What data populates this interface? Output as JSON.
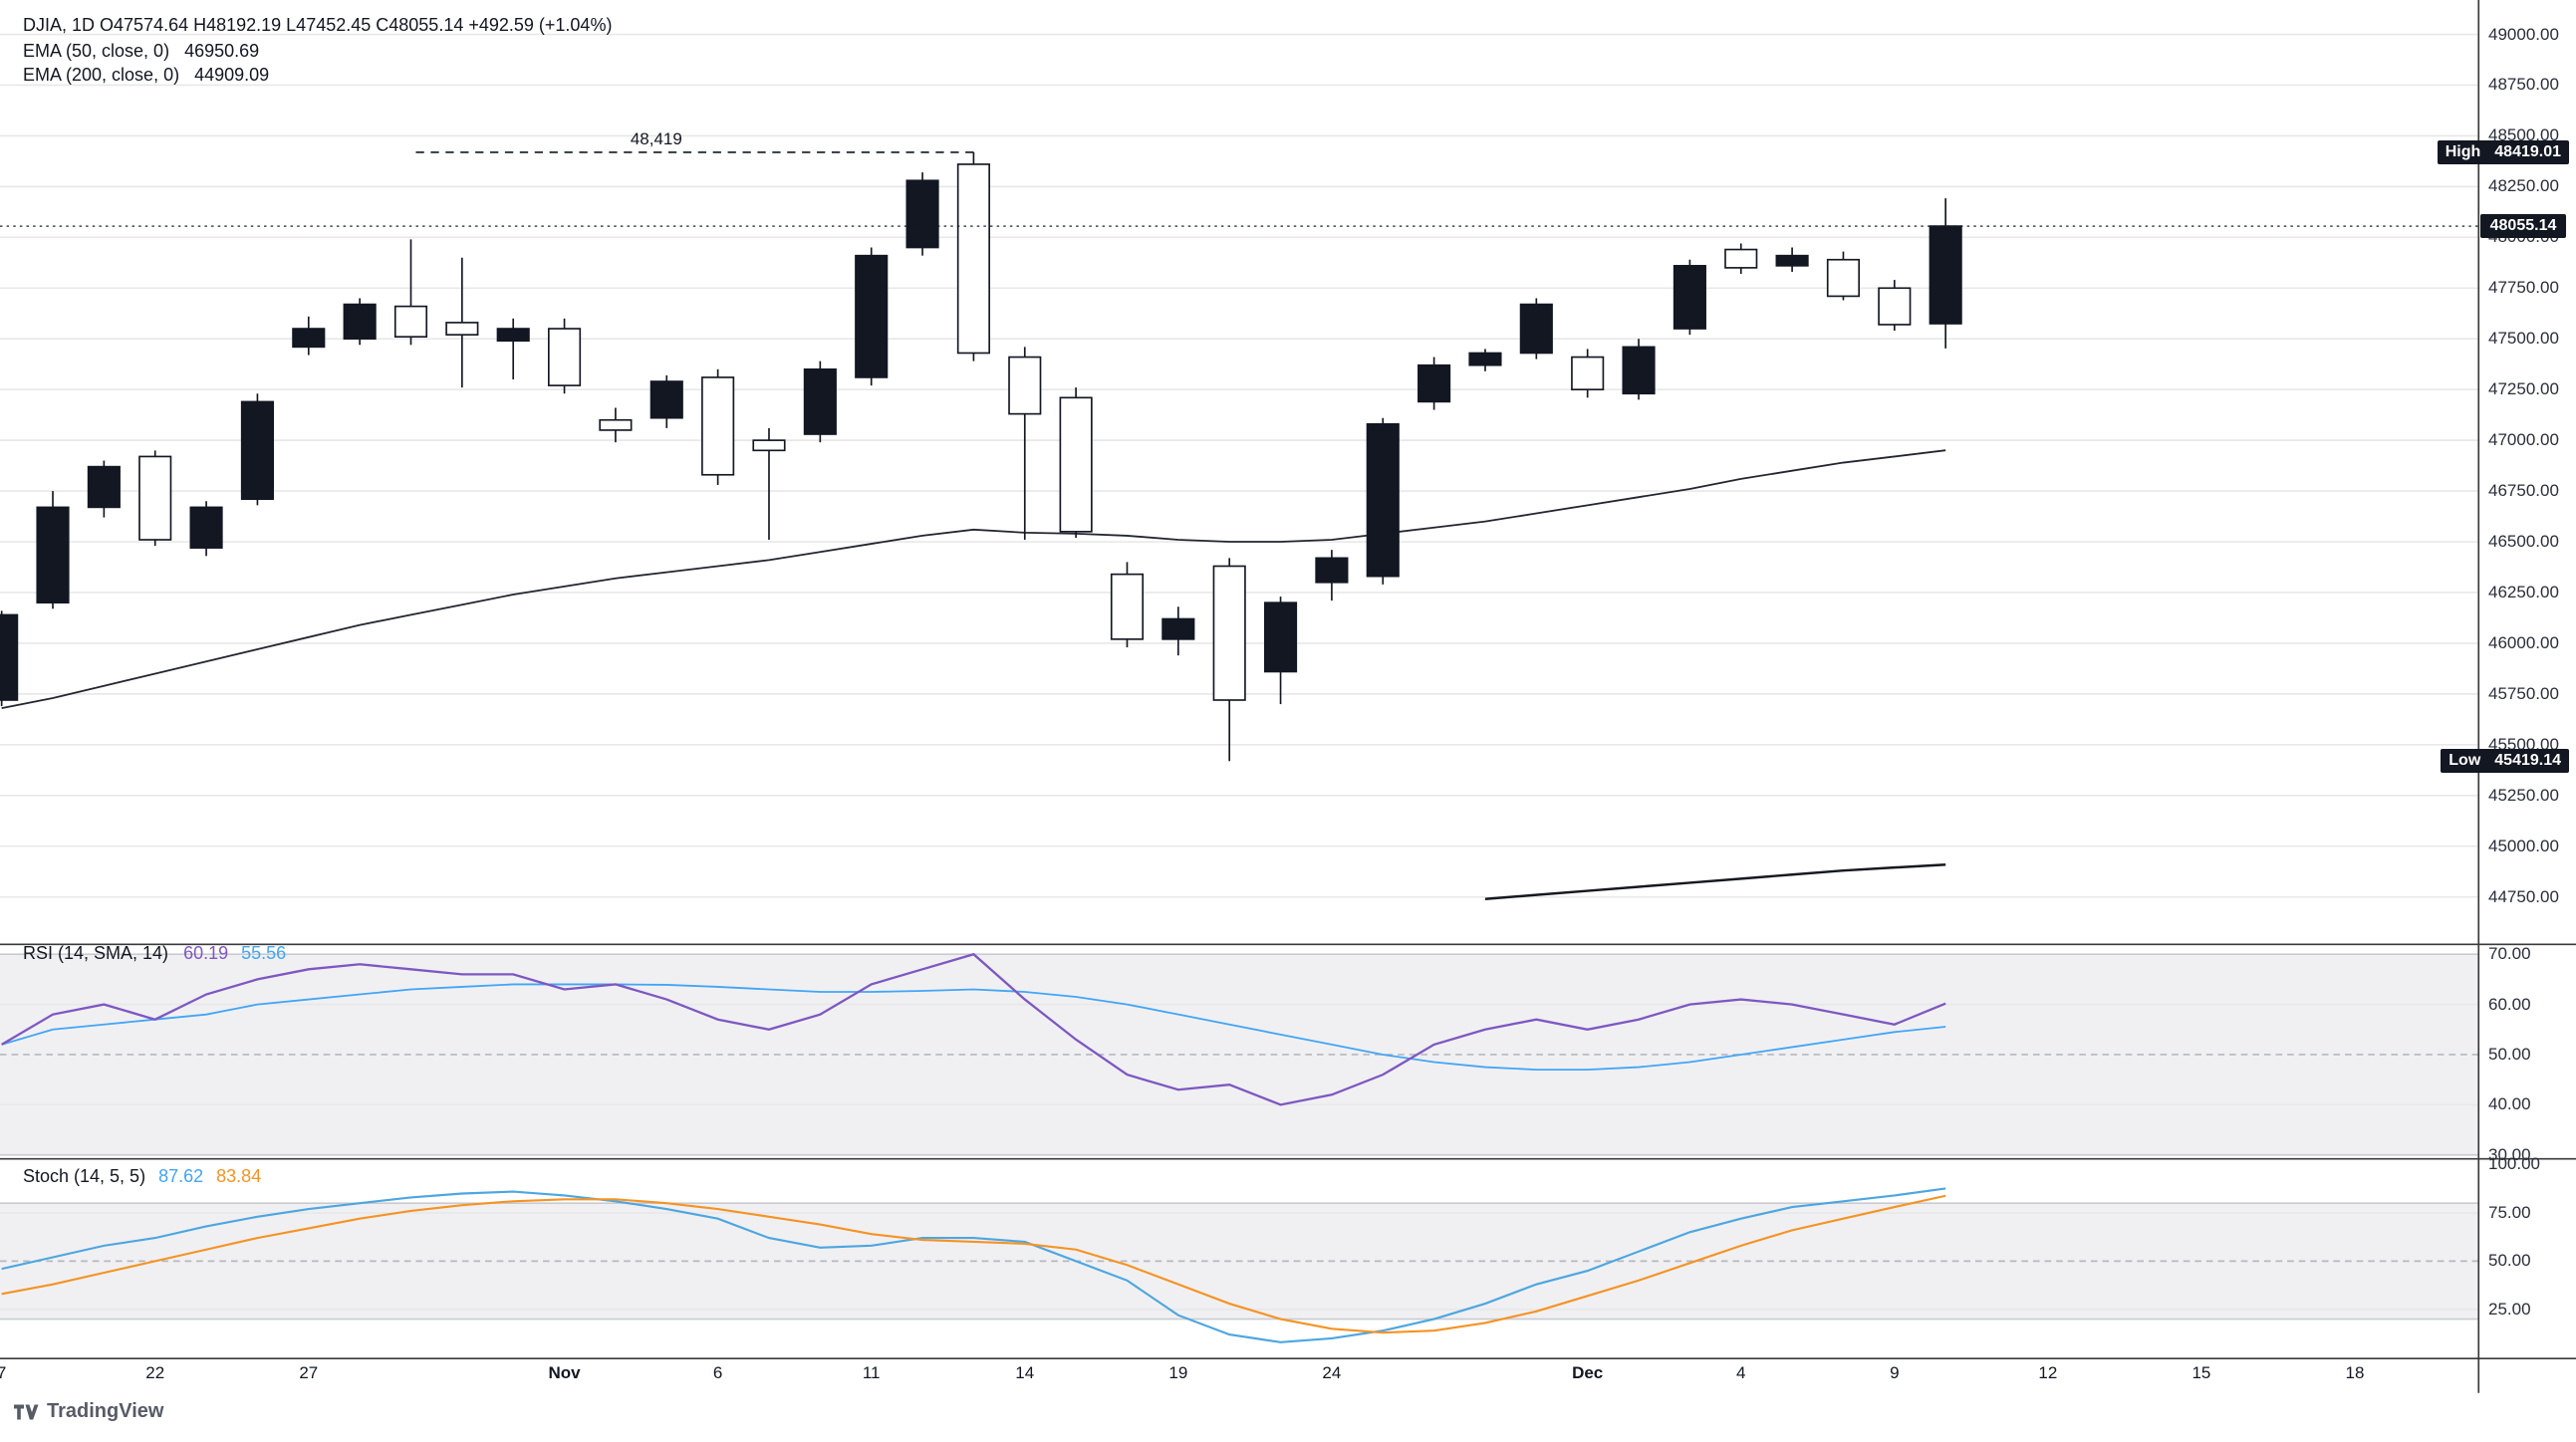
{
  "header": {
    "ohlc_line": "DJIA, 1D O47574.64 H48192.19 L47452.45 C48055.14 +492.59 (+1.04%)",
    "ema50_label": "EMA (50, close, 0)",
    "ema50_value": "46950.69",
    "ema200_label": "EMA (200, close, 0)",
    "ema200_value": "44909.09"
  },
  "rsi_legend": {
    "label": "RSI (14, SMA, 14)",
    "rsi_value": "60.19",
    "sma_value": "55.56"
  },
  "stoch_legend": {
    "label": "Stoch (14, 5, 5)",
    "k_value": "87.62",
    "d_value": "83.84"
  },
  "badges": {
    "high_label": "High",
    "high_value": "48419.01",
    "last_value": "48055.14",
    "low_label": "Low",
    "low_value": "45419.14"
  },
  "annotation": {
    "high_line_label": "48,419"
  },
  "logo_text": "TradingView",
  "colors": {
    "up": "#131722",
    "down_fill": "#ffffff",
    "outline": "#131722",
    "rsi": "#7e57c2",
    "rsi_sma": "#42a5f5",
    "stoch_k": "#4da6e0",
    "stoch_d": "#f59324",
    "grid": "#e8e8e8",
    "band": "#f0f0f2",
    "divider": "#3a3a3a",
    "badge_bg": "#131722",
    "text": "#131722"
  },
  "price_axis": {
    "labels": [
      "49000.00",
      "48750.00",
      "48500.00",
      "48250.00",
      "48000.00",
      "47750.00",
      "47500.00",
      "47250.00",
      "47000.00",
      "46750.00",
      "46500.00",
      "46250.00",
      "46000.00",
      "45750.00",
      "45500.00",
      "45250.00",
      "45000.00",
      "44750.00"
    ]
  },
  "rsi_axis": {
    "labels": [
      "70.00",
      "60.00",
      "50.00",
      "40.00",
      "30.00"
    ]
  },
  "stoch_axis": {
    "labels": [
      "100.00",
      "75.00",
      "50.00",
      "25.00"
    ]
  },
  "chart_data": {
    "type": "candlestick",
    "symbol": "DJIA",
    "interval": "1D",
    "last": {
      "open": 47574.64,
      "high": 48192.19,
      "low": 47452.45,
      "close": 48055.14,
      "change": 492.59,
      "change_pct": 1.04
    },
    "high_level": 48419.01,
    "low_level": 45419.14,
    "price_range": [
      44750,
      49000
    ],
    "rsi_levels": [
      70,
      50,
      30
    ],
    "stoch_levels": [
      80,
      50,
      20
    ],
    "candles_format": [
      "date",
      "open",
      "high",
      "low",
      "close"
    ],
    "candles": [
      [
        "Oct 17",
        45720,
        46160,
        45690,
        46140
      ],
      [
        "Oct 20",
        46200,
        46750,
        46170,
        46670
      ],
      [
        "Oct 21",
        46670,
        46900,
        46620,
        46870
      ],
      [
        "Oct 22",
        46920,
        46950,
        46480,
        46510
      ],
      [
        "Oct 23",
        46470,
        46700,
        46430,
        46670
      ],
      [
        "Oct 24",
        46710,
        47230,
        46680,
        47190
      ],
      [
        "Oct 27",
        47460,
        47610,
        47420,
        47550
      ],
      [
        "Oct 28",
        47500,
        47700,
        47470,
        47670
      ],
      [
        "Oct 29",
        47660,
        47990,
        47470,
        47510
      ],
      [
        "Oct 30",
        47580,
        47900,
        47260,
        47520
      ],
      [
        "Oct 31",
        47490,
        47600,
        47300,
        47550
      ],
      [
        "Nov 3",
        47550,
        47600,
        47230,
        47270
      ],
      [
        "Nov 4",
        47100,
        47160,
        46990,
        47050
      ],
      [
        "Nov 5",
        47110,
        47320,
        47060,
        47290
      ],
      [
        "Nov 6",
        47310,
        47350,
        46780,
        46830
      ],
      [
        "Nov 7",
        47000,
        47060,
        46510,
        46950
      ],
      [
        "Nov 10",
        47030,
        47390,
        46990,
        47350
      ],
      [
        "Nov 11",
        47310,
        47950,
        47270,
        47910
      ],
      [
        "Nov 12",
        47950,
        48320,
        47910,
        48280
      ],
      [
        "Nov 13",
        48360,
        48419.01,
        47390,
        47430
      ],
      [
        "Nov 14",
        47410,
        47460,
        46510,
        47130
      ],
      [
        "Nov 17",
        47210,
        47260,
        46520,
        46550
      ],
      [
        "Nov 18",
        46340,
        46400,
        45980,
        46020
      ],
      [
        "Nov 19",
        46020,
        46180,
        45940,
        46120
      ],
      [
        "Nov 20",
        46380,
        46420,
        45419.14,
        45720
      ],
      [
        "Nov 21",
        45860,
        46230,
        45700,
        46200
      ],
      [
        "Nov 24",
        46300,
        46460,
        46210,
        46420
      ],
      [
        "Nov 25",
        46330,
        47110,
        46290,
        47080
      ],
      [
        "Nov 26",
        47190,
        47410,
        47150,
        47370
      ],
      [
        "Nov 27",
        47370,
        47450,
        47340,
        47430
      ],
      [
        "Nov 28",
        47430,
        47700,
        47400,
        47670
      ],
      [
        "Dec 1",
        47410,
        47450,
        47210,
        47250
      ],
      [
        "Dec 2",
        47230,
        47500,
        47200,
        47460
      ],
      [
        "Dec 3",
        47550,
        47890,
        47520,
        47860
      ],
      [
        "Dec 4",
        47940,
        47970,
        47820,
        47850
      ],
      [
        "Dec 5",
        47860,
        47950,
        47830,
        47910
      ],
      [
        "Dec 8",
        47890,
        47930,
        47690,
        47710
      ],
      [
        "Dec 9",
        47750,
        47790,
        47540,
        47570
      ],
      [
        "Dec 10",
        47574.64,
        48192.19,
        47452.45,
        48055.14
      ]
    ],
    "ema50": [
      45680,
      45730,
      45790,
      45850,
      45910,
      45970,
      46030,
      46090,
      46140,
      46190,
      46240,
      46280,
      46320,
      46350,
      46380,
      46410,
      46450,
      46490,
      46530,
      46560,
      46545,
      46540,
      46530,
      46510,
      46500,
      46500,
      46510,
      46540,
      46570,
      46600,
      46640,
      46680,
      46720,
      46760,
      46810,
      46850,
      46890,
      46920,
      46950.69
    ],
    "ema200": {
      "from_bar": 29,
      "values": [
        44740,
        44760,
        44780,
        44800,
        44820,
        44840,
        44860,
        44880,
        44895,
        44909.09
      ]
    },
    "rsi": [
      52,
      58,
      60,
      57,
      62,
      65,
      67,
      68,
      67,
      66,
      66,
      63,
      64,
      61,
      57,
      55,
      58,
      64,
      67,
      70,
      61,
      53,
      46,
      43,
      44,
      40,
      42,
      46,
      52,
      55,
      57,
      55,
      57,
      60,
      61,
      60,
      58,
      56,
      60.19
    ],
    "rsi_sma": [
      52,
      55,
      56,
      57,
      58,
      60,
      61,
      62,
      63,
      63.5,
      64,
      64,
      64,
      63.9,
      63.5,
      63,
      62.5,
      62.5,
      62.7,
      63,
      62.5,
      61.5,
      60,
      58,
      56,
      54,
      52,
      50,
      48.5,
      47.5,
      47,
      47,
      47.5,
      48.5,
      50,
      51.5,
      53,
      54.5,
      55.56
    ],
    "stoch_k": [
      46,
      52,
      58,
      62,
      68,
      73,
      77,
      80,
      83,
      85,
      86,
      84,
      81,
      77,
      72,
      62,
      57,
      58,
      62,
      62,
      60,
      50,
      40,
      22,
      12,
      8,
      10,
      14,
      20,
      28,
      38,
      45,
      55,
      65,
      72,
      78,
      81,
      84,
      87.62
    ],
    "stoch_d": [
      33,
      38,
      44,
      50,
      56,
      62,
      67,
      72,
      76,
      79,
      81,
      82,
      82,
      80,
      77,
      73,
      69,
      64,
      61,
      60,
      59,
      56,
      48,
      38,
      28,
      20,
      15,
      13,
      14,
      18,
      24,
      32,
      40,
      49,
      58,
      66,
      72,
      78,
      83.84
    ],
    "x_ticks": [
      [
        0,
        "7"
      ],
      [
        3,
        "22"
      ],
      [
        6,
        "27"
      ],
      [
        11,
        "Nov"
      ],
      [
        14,
        "6"
      ],
      [
        17,
        "11"
      ],
      [
        20,
        "14"
      ],
      [
        23,
        "19"
      ],
      [
        26,
        "24"
      ],
      [
        31,
        "Dec"
      ],
      [
        34,
        "4"
      ],
      [
        37,
        "9"
      ],
      [
        40,
        "12"
      ],
      [
        43,
        "15"
      ],
      [
        46,
        "18"
      ]
    ]
  }
}
